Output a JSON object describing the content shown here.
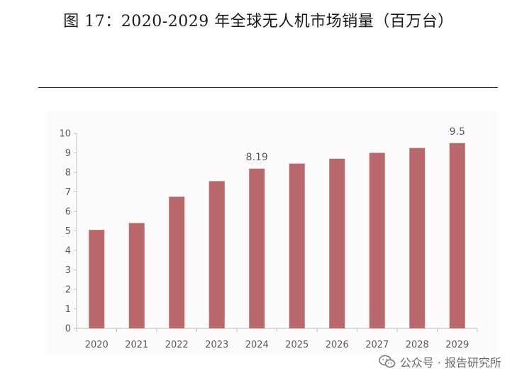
{
  "page": {
    "title": "图 17：2020-2029 年全球无人机市场销量（百万台）"
  },
  "watermark": {
    "text": "公众号 · 报告研究所",
    "icon": "wechat-icon"
  },
  "colors": {
    "bar": "#b9696c",
    "axis": "#bfbfbf",
    "tick_text": "#595959",
    "label_text": "#595959"
  },
  "chart_data": {
    "type": "bar",
    "categories": [
      "2020",
      "2021",
      "2022",
      "2023",
      "2024",
      "2025",
      "2026",
      "2027",
      "2028",
      "2029"
    ],
    "values": [
      5.05,
      5.4,
      6.75,
      7.55,
      8.19,
      8.45,
      8.7,
      9.0,
      9.25,
      9.5
    ],
    "data_labels": [
      {
        "index": 4,
        "text": "8.19"
      },
      {
        "index": 9,
        "text": "9.5"
      }
    ],
    "yticks": [
      "0",
      "1",
      "2",
      "3",
      "4",
      "5",
      "6",
      "7",
      "8",
      "9",
      "10"
    ],
    "ylim": [
      0,
      10
    ],
    "grid": false,
    "title": "",
    "xlabel": "",
    "ylabel": ""
  }
}
